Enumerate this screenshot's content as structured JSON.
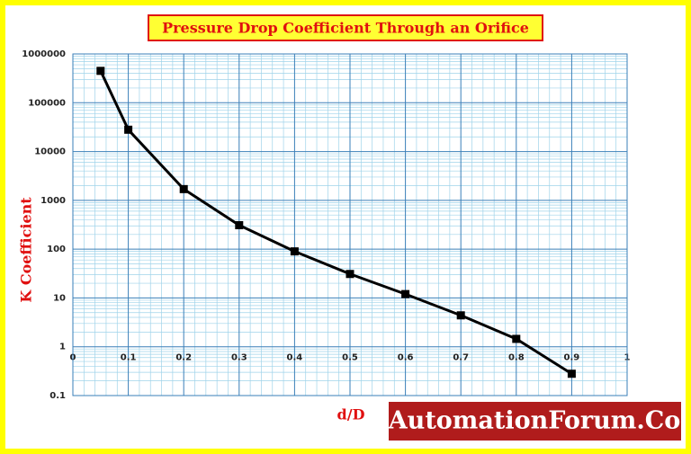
{
  "chart_data": {
    "type": "line",
    "title": "Pressure Drop Coefficient Through an Orifice",
    "x_label": "d/D",
    "y_label": "K Coefficient",
    "x": [
      0.05,
      0.1,
      0.2,
      0.3,
      0.4,
      0.5,
      0.6,
      0.7,
      0.8,
      0.9
    ],
    "values": [
      450000,
      28000,
      1700,
      310,
      90,
      31,
      12,
      4.4,
      1.45,
      0.28
    ],
    "color": "#000000",
    "xlim": [
      0,
      1
    ],
    "xticks": [
      0,
      0.1,
      0.2,
      0.3,
      0.4,
      0.5,
      0.6,
      0.7,
      0.8,
      0.9,
      1
    ],
    "ylim": [
      0.1,
      1000000
    ],
    "yticks": [
      0.1,
      1,
      10,
      100,
      1000,
      10000,
      100000,
      1000000
    ],
    "y_scale": "log",
    "grid": true,
    "minor_grid": true,
    "watermark": "AutomationForum.Co"
  }
}
